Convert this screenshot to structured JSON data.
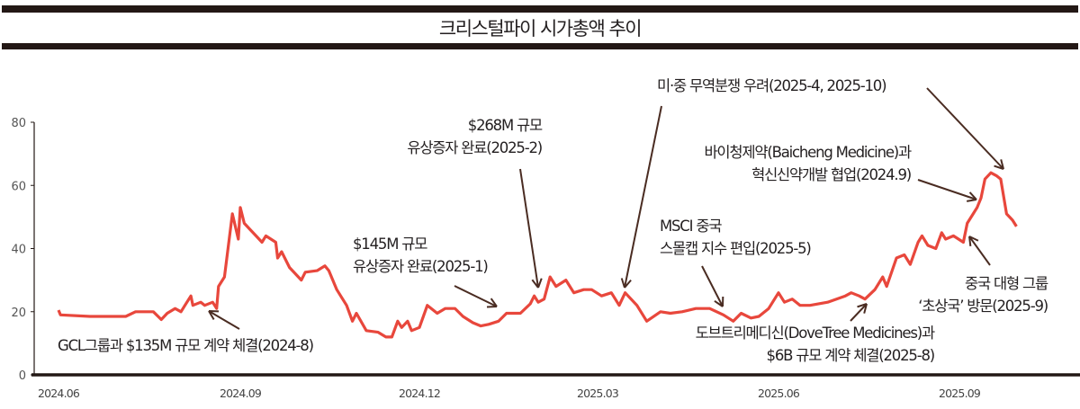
{
  "title": "크리스털파이 시가총액 추이",
  "colors": {
    "line": "#e8473c",
    "arrow": "#4a2c22",
    "axis": "#231815"
  },
  "chart_data": {
    "type": "line",
    "title": "크리스털파이 시가총액 추이",
    "xlabel": "",
    "ylabel": "",
    "ylim": [
      0,
      80
    ],
    "yticks": [
      0,
      20,
      40,
      60,
      80
    ],
    "xticks": [
      {
        "label": "2024.06",
        "date": "2024-06-01"
      },
      {
        "label": "2024.09",
        "date": "2024-09-01"
      },
      {
        "label": "2024.12",
        "date": "2024-12-01"
      },
      {
        "label": "2025.03",
        "date": "2025-03-01"
      },
      {
        "label": "2025.06",
        "date": "2025-06-01"
      },
      {
        "label": "2025.09",
        "date": "2025-09-01"
      }
    ],
    "grid": false,
    "points": [
      [
        "2024-06-01",
        20.5
      ],
      [
        "2024-06-02",
        19
      ],
      [
        "2024-06-17",
        18.5
      ],
      [
        "2024-07-05",
        18.5
      ],
      [
        "2024-07-10",
        20
      ],
      [
        "2024-07-19",
        20
      ],
      [
        "2024-07-23",
        17.5
      ],
      [
        "2024-07-26",
        19.5
      ],
      [
        "2024-07-30",
        21
      ],
      [
        "2024-08-02",
        20
      ],
      [
        "2024-08-04",
        22
      ],
      [
        "2024-08-07",
        25
      ],
      [
        "2024-08-08",
        22
      ],
      [
        "2024-08-12",
        23
      ],
      [
        "2024-08-14",
        22
      ],
      [
        "2024-08-18",
        23
      ],
      [
        "2024-08-20",
        21
      ],
      [
        "2024-08-21",
        28
      ],
      [
        "2024-08-24",
        31
      ],
      [
        "2024-08-28",
        51
      ],
      [
        "2024-08-31",
        43
      ],
      [
        "2024-09-01",
        53
      ],
      [
        "2024-09-03",
        48
      ],
      [
        "2024-09-06",
        46
      ],
      [
        "2024-09-09",
        44
      ],
      [
        "2024-09-12",
        42
      ],
      [
        "2024-09-14",
        44
      ],
      [
        "2024-09-19",
        42
      ],
      [
        "2024-09-20",
        37
      ],
      [
        "2024-09-22",
        39
      ],
      [
        "2024-09-26",
        34
      ],
      [
        "2024-10-02",
        30
      ],
      [
        "2024-10-04",
        32.5
      ],
      [
        "2024-10-10",
        33
      ],
      [
        "2024-10-14",
        34.5
      ],
      [
        "2024-10-16",
        33
      ],
      [
        "2024-10-20",
        27
      ],
      [
        "2024-10-25",
        22
      ],
      [
        "2024-10-28",
        17
      ],
      [
        "2024-10-30",
        19.5
      ],
      [
        "2024-11-04",
        14
      ],
      [
        "2024-11-10",
        13.5
      ],
      [
        "2024-11-14",
        12
      ],
      [
        "2024-11-17",
        12
      ],
      [
        "2024-11-20",
        17
      ],
      [
        "2024-11-22",
        15
      ],
      [
        "2024-11-25",
        17
      ],
      [
        "2024-11-27",
        14
      ],
      [
        "2024-12-01",
        15
      ],
      [
        "2024-12-05",
        22
      ],
      [
        "2024-12-10",
        19.5
      ],
      [
        "2024-12-14",
        21
      ],
      [
        "2024-12-19",
        21
      ],
      [
        "2024-12-23",
        18.5
      ],
      [
        "2024-12-28",
        16.5
      ],
      [
        "2025-01-01",
        15.5
      ],
      [
        "2025-01-05",
        16
      ],
      [
        "2025-01-10",
        17
      ],
      [
        "2025-01-14",
        19.5
      ],
      [
        "2025-01-21",
        19.5
      ],
      [
        "2025-01-26",
        22.5
      ],
      [
        "2025-01-28",
        25
      ],
      [
        "2025-01-30",
        23
      ],
      [
        "2025-02-02",
        24
      ],
      [
        "2025-02-05",
        31
      ],
      [
        "2025-02-08",
        28
      ],
      [
        "2025-02-13",
        30
      ],
      [
        "2025-02-17",
        26
      ],
      [
        "2025-02-22",
        27
      ],
      [
        "2025-02-26",
        27
      ],
      [
        "2025-03-03",
        25
      ],
      [
        "2025-03-08",
        26
      ],
      [
        "2025-03-12",
        22
      ],
      [
        "2025-03-15",
        26
      ],
      [
        "2025-03-21",
        22
      ],
      [
        "2025-03-26",
        17
      ],
      [
        "2025-04-02",
        20
      ],
      [
        "2025-04-07",
        19.5
      ],
      [
        "2025-04-13",
        20
      ],
      [
        "2025-04-20",
        21
      ],
      [
        "2025-04-27",
        21
      ],
      [
        "2025-05-04",
        19
      ],
      [
        "2025-05-09",
        17
      ],
      [
        "2025-05-13",
        19.5
      ],
      [
        "2025-05-18",
        18
      ],
      [
        "2025-05-22",
        18.5
      ],
      [
        "2025-05-27",
        21
      ],
      [
        "2025-06-01",
        26
      ],
      [
        "2025-06-04",
        23
      ],
      [
        "2025-06-08",
        24
      ],
      [
        "2025-06-12",
        22
      ],
      [
        "2025-06-17",
        22
      ],
      [
        "2025-06-26",
        23
      ],
      [
        "2025-07-05",
        25
      ],
      [
        "2025-07-08",
        26
      ],
      [
        "2025-07-12",
        25
      ],
      [
        "2025-07-15",
        24
      ],
      [
        "2025-07-20",
        27
      ],
      [
        "2025-07-24",
        31
      ],
      [
        "2025-07-26",
        28
      ],
      [
        "2025-07-31",
        37
      ],
      [
        "2025-08-04",
        38
      ],
      [
        "2025-08-07",
        35
      ],
      [
        "2025-08-11",
        42
      ],
      [
        "2025-08-13",
        44
      ],
      [
        "2025-08-16",
        41
      ],
      [
        "2025-08-20",
        40
      ],
      [
        "2025-08-23",
        45
      ],
      [
        "2025-08-25",
        43
      ],
      [
        "2025-08-29",
        44
      ],
      [
        "2025-09-03",
        42
      ],
      [
        "2025-09-05",
        48
      ],
      [
        "2025-09-08",
        51
      ],
      [
        "2025-09-10",
        53
      ],
      [
        "2025-09-12",
        56
      ],
      [
        "2025-09-14",
        62
      ],
      [
        "2025-09-17",
        64
      ],
      [
        "2025-09-20",
        63
      ],
      [
        "2025-09-22",
        62
      ],
      [
        "2025-09-25",
        51
      ],
      [
        "2025-09-28",
        49
      ],
      [
        "2025-09-30",
        47
      ]
    ],
    "annotations": {
      "gcl": "GCL그룹과 $135M 규모 계약 체결(2024-8)",
      "a145_1": "$145M 규모",
      "a145_2": "유상증자 완료(2025-1)",
      "a268_1": "$268M 규모",
      "a268_2": "유상증자 완료(2025-2)",
      "trade": "미·중 무역분쟁 우려(2025-4, 2025-10)",
      "baicheng_1": "바이청제약(Baicheng Medicine)과",
      "baicheng_2": "혁신신약개발 협업(2024.9)",
      "msci_1": "MSCI 중국",
      "msci_2": "스몰캡 지수 편입(2025-5)",
      "dove_1": "도브트리메디신(DoveTree Medicines)과",
      "dove_2": "$6B 규모 계약 체결(2025-8)",
      "visit_1": "중국 대형 그룹",
      "visit_2": "‘초상국’ 방문(2025-9)"
    }
  }
}
